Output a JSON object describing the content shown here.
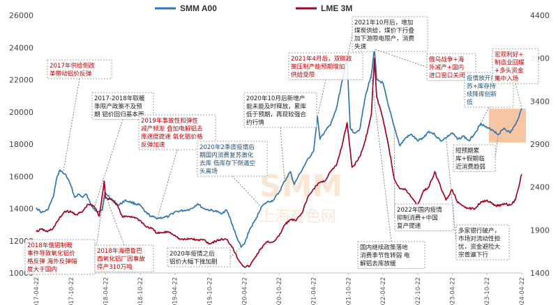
{
  "chart_data": {
    "type": "line",
    "title": "",
    "xlabel": "",
    "ylabel": "",
    "legend_position": "top-center",
    "grid": false,
    "x_ticks": [
      "2017-04-22",
      "2017-10-22",
      "2018-04-22",
      "2018-10-22",
      "2019-04-22",
      "2019-10-22",
      "2020-04-22",
      "2020-10-22",
      "2021-04-22",
      "2021-10-22",
      "2022-04-22",
      "2022-10-22",
      "2023-04-22",
      "2023-10-22",
      "2024-04-22"
    ],
    "y_left": {
      "label": "SMM A00",
      "lim": [
        10000,
        26000
      ],
      "ticks": [
        "10000",
        "12000",
        "14000",
        "16000",
        "18000",
        "20000",
        "22000",
        "24000",
        "26000"
      ]
    },
    "y_right": {
      "label": "LME 3M",
      "lim": [
        1400,
        4400
      ],
      "ticks": [
        "1400",
        "1900",
        "2400",
        "2900",
        "3400",
        "3900",
        "4400"
      ]
    },
    "series": [
      {
        "name": "SMM A00",
        "axis": "left",
        "color": "#2e75b6",
        "points": [
          [
            "2017-04-22",
            14050
          ],
          [
            "2017-05-20",
            13750
          ],
          [
            "2017-06-20",
            13900
          ],
          [
            "2017-07-20",
            14700
          ],
          [
            "2017-08-10",
            16000
          ],
          [
            "2017-08-25",
            16400
          ],
          [
            "2017-09-10",
            16200
          ],
          [
            "2017-09-25",
            16100
          ],
          [
            "2017-10-22",
            15400
          ],
          [
            "2017-11-10",
            14700
          ],
          [
            "2017-12-01",
            14900
          ],
          [
            "2017-12-20",
            14700
          ],
          [
            "2018-01-10",
            14900
          ],
          [
            "2018-02-01",
            14300
          ],
          [
            "2018-02-20",
            14000
          ],
          [
            "2018-03-10",
            13800
          ],
          [
            "2018-04-05",
            13900
          ],
          [
            "2018-04-20",
            15000
          ],
          [
            "2018-05-05",
            14800
          ],
          [
            "2018-06-01",
            14500
          ],
          [
            "2018-07-01",
            14200
          ],
          [
            "2018-08-01",
            14500
          ],
          [
            "2018-09-01",
            14400
          ],
          [
            "2018-10-22",
            14200
          ],
          [
            "2018-11-15",
            13800
          ],
          [
            "2018-12-20",
            13500
          ],
          [
            "2019-01-20",
            13400
          ],
          [
            "2019-02-20",
            13450
          ],
          [
            "2019-03-20",
            13500
          ],
          [
            "2019-04-22",
            13800
          ],
          [
            "2019-05-20",
            13850
          ],
          [
            "2019-06-20",
            13900
          ],
          [
            "2019-07-20",
            14000
          ],
          [
            "2019-08-20",
            14300
          ],
          [
            "2019-09-20",
            14000
          ],
          [
            "2019-10-22",
            13900
          ],
          [
            "2019-11-20",
            13850
          ],
          [
            "2019-12-20",
            13700
          ],
          [
            "2020-01-20",
            13900
          ],
          [
            "2020-02-10",
            13300
          ],
          [
            "2020-03-10",
            12300
          ],
          [
            "2020-04-05",
            11600
          ],
          [
            "2020-04-22",
            11800
          ],
          [
            "2020-05-20",
            12700
          ],
          [
            "2020-06-20",
            13300
          ],
          [
            "2020-07-20",
            14100
          ],
          [
            "2020-08-20",
            14400
          ],
          [
            "2020-09-20",
            14500
          ],
          [
            "2020-10-22",
            15000
          ],
          [
            "2020-11-20",
            15700
          ],
          [
            "2020-12-20",
            16300
          ],
          [
            "2021-01-10",
            15500
          ],
          [
            "2021-02-10",
            16200
          ],
          [
            "2021-03-10",
            16800
          ],
          [
            "2021-04-22",
            17600
          ],
          [
            "2021-05-12",
            19700
          ],
          [
            "2021-05-25",
            18300
          ],
          [
            "2021-06-20",
            18800
          ],
          [
            "2021-07-20",
            19200
          ],
          [
            "2021-08-20",
            20200
          ],
          [
            "2021-09-20",
            22000
          ],
          [
            "2021-10-15",
            23200
          ],
          [
            "2021-11-01",
            19000
          ],
          [
            "2021-11-20",
            18700
          ],
          [
            "2021-12-20",
            18900
          ],
          [
            "2022-01-20",
            21000
          ],
          [
            "2022-02-20",
            22300
          ],
          [
            "2022-03-08",
            23900
          ],
          [
            "2022-03-20",
            22000
          ],
          [
            "2022-04-22",
            21800
          ],
          [
            "2022-05-20",
            20400
          ],
          [
            "2022-06-20",
            19100
          ],
          [
            "2022-07-20",
            17900
          ],
          [
            "2022-08-20",
            18400
          ],
          [
            "2022-09-20",
            18600
          ],
          [
            "2022-10-22",
            18200
          ],
          [
            "2022-11-20",
            18400
          ],
          [
            "2022-12-20",
            18800
          ],
          [
            "2023-01-20",
            18600
          ],
          [
            "2023-02-20",
            18200
          ],
          [
            "2023-03-20",
            18400
          ],
          [
            "2023-04-22",
            18700
          ],
          [
            "2023-05-20",
            18300
          ],
          [
            "2023-06-20",
            18500
          ],
          [
            "2023-07-20",
            18200
          ],
          [
            "2023-08-20",
            18700
          ],
          [
            "2023-09-20",
            19300
          ],
          [
            "2023-10-22",
            19000
          ],
          [
            "2023-11-20",
            18900
          ],
          [
            "2023-12-20",
            18600
          ],
          [
            "2024-01-20",
            19000
          ],
          [
            "2024-02-20",
            18700
          ],
          [
            "2024-03-20",
            19200
          ],
          [
            "2024-04-22",
            20200
          ]
        ]
      },
      {
        "name": "LME 3M",
        "axis": "right",
        "color": "#a50021",
        "points": [
          [
            "2017-04-22",
            1880
          ],
          [
            "2017-05-20",
            1910
          ],
          [
            "2017-06-20",
            1880
          ],
          [
            "2017-07-20",
            1920
          ],
          [
            "2017-08-20",
            2030
          ],
          [
            "2017-09-20",
            2120
          ],
          [
            "2017-10-22",
            2110
          ],
          [
            "2017-11-20",
            2080
          ],
          [
            "2017-12-20",
            2110
          ],
          [
            "2018-01-20",
            2200
          ],
          [
            "2018-02-20",
            2180
          ],
          [
            "2018-03-20",
            2060
          ],
          [
            "2018-04-15",
            2470
          ],
          [
            "2018-04-22",
            2270
          ],
          [
            "2018-05-20",
            2260
          ],
          [
            "2018-06-20",
            2200
          ],
          [
            "2018-07-20",
            2050
          ],
          [
            "2018-08-20",
            2060
          ],
          [
            "2018-09-20",
            2050
          ],
          [
            "2018-10-22",
            2010
          ],
          [
            "2018-11-20",
            1940
          ],
          [
            "2018-12-20",
            1920
          ],
          [
            "2019-01-20",
            1860
          ],
          [
            "2019-02-20",
            1870
          ],
          [
            "2019-03-20",
            1880
          ],
          [
            "2019-04-22",
            1840
          ],
          [
            "2019-05-20",
            1790
          ],
          [
            "2019-06-20",
            1790
          ],
          [
            "2019-07-20",
            1800
          ],
          [
            "2019-08-20",
            1780
          ],
          [
            "2019-09-20",
            1790
          ],
          [
            "2019-10-22",
            1740
          ],
          [
            "2019-11-20",
            1770
          ],
          [
            "2019-12-20",
            1790
          ],
          [
            "2020-01-20",
            1790
          ],
          [
            "2020-02-20",
            1700
          ],
          [
            "2020-03-20",
            1560
          ],
          [
            "2020-04-22",
            1470
          ],
          [
            "2020-05-20",
            1480
          ],
          [
            "2020-06-20",
            1590
          ],
          [
            "2020-07-20",
            1690
          ],
          [
            "2020-08-20",
            1760
          ],
          [
            "2020-09-20",
            1760
          ],
          [
            "2020-10-22",
            1830
          ],
          [
            "2020-11-20",
            1960
          ],
          [
            "2020-12-20",
            2020
          ],
          [
            "2021-01-20",
            2010
          ],
          [
            "2021-02-20",
            2100
          ],
          [
            "2021-03-20",
            2270
          ],
          [
            "2021-04-22",
            2380
          ],
          [
            "2021-05-20",
            2450
          ],
          [
            "2021-06-20",
            2470
          ],
          [
            "2021-07-20",
            2580
          ],
          [
            "2021-08-20",
            2650
          ],
          [
            "2021-09-20",
            2900
          ],
          [
            "2021-10-15",
            3150
          ],
          [
            "2021-11-10",
            2630
          ],
          [
            "2021-11-20",
            2650
          ],
          [
            "2021-12-20",
            2750
          ],
          [
            "2022-01-20",
            2950
          ],
          [
            "2022-02-20",
            3250
          ],
          [
            "2022-03-08",
            3900
          ],
          [
            "2022-03-20",
            3450
          ],
          [
            "2022-04-22",
            3200
          ],
          [
            "2022-05-20",
            2900
          ],
          [
            "2022-06-20",
            2500
          ],
          [
            "2022-07-20",
            2380
          ],
          [
            "2022-08-20",
            2370
          ],
          [
            "2022-09-20",
            2280
          ],
          [
            "2022-10-22",
            2190
          ],
          [
            "2022-11-20",
            2350
          ],
          [
            "2022-12-20",
            2400
          ],
          [
            "2023-01-20",
            2580
          ],
          [
            "2023-02-20",
            2400
          ],
          [
            "2023-03-20",
            2250
          ],
          [
            "2023-04-22",
            2370
          ],
          [
            "2023-05-20",
            2220
          ],
          [
            "2023-06-20",
            2180
          ],
          [
            "2023-07-20",
            2150
          ],
          [
            "2023-08-20",
            2150
          ],
          [
            "2023-09-20",
            2230
          ],
          [
            "2023-10-22",
            2250
          ],
          [
            "2023-11-20",
            2200
          ],
          [
            "2023-12-20",
            2180
          ],
          [
            "2024-01-20",
            2210
          ],
          [
            "2024-02-20",
            2190
          ],
          [
            "2024-03-20",
            2250
          ],
          [
            "2024-04-22",
            2550
          ]
        ]
      }
    ],
    "highlight_region": {
      "x_start": "2023-11-01",
      "x_end": "2024-04-22",
      "y_left": [
        18100,
        20200
      ],
      "color": "#f4b183"
    },
    "annotations": [
      {
        "id": "ann-2017-supply",
        "lines": [
          "2017年供给侧改",
          "革带动铝价反弹"
        ],
        "color": "red",
        "anchor": [
          "2017-08-25",
          16400
        ],
        "connector": [
          "2017-09-10",
          16200
        ]
      },
      {
        "id": "ann-2017-2018-limit",
        "lines": [
          "2017-2018年取暖",
          "季限产政策不及预",
          "期 铝价回归基本面"
        ],
        "color": "dark",
        "connector": [
          "2018-02-20",
          14000
        ]
      },
      {
        "id": "ann-2019-accident",
        "lines": [
          "2019年事故性和弹性",
          "减产频发 叠加电解铝去",
          "库速度提速 氧化铝价格",
          "反弹加速"
        ],
        "color": "red",
        "connector": [
          "2019-01-20",
          13400
        ]
      },
      {
        "id": "ann-2020-q2",
        "lines": [
          "2020年2季度疫情后",
          "期国内消费复苏激化",
          "去库 低库存下倒逼空",
          "头离场"
        ],
        "color": "blue",
        "connector": [
          "2020-07-20",
          14100
        ]
      },
      {
        "id": "ann-2020-oct",
        "lines": [
          "2020年10月后新增产",
          "能未能及时释放，累库",
          "低于预期，再现较强合",
          "约行情"
        ],
        "color": "dark",
        "connector": [
          "2020-11-20",
          15700
        ]
      },
      {
        "id": "ann-2021-apr",
        "lines": [
          "2021年4月后，双碳政",
          "策压制产能预期增加",
          "供给受限"
        ],
        "color": "red",
        "connector": [
          "2021-05-12",
          19700
        ]
      },
      {
        "id": "ann-2021-oct",
        "lines": [
          "2021年10月后，增加",
          "煤炭供给，煤价下行叠",
          "加下游限电限产，消费",
          "失速"
        ],
        "color": "dark",
        "connector": [
          "2021-10-15",
          23200
        ]
      },
      {
        "id": "ann-russia",
        "lines": [
          "俄乌战争+海",
          "外减产+国内",
          "进口窗口关闭"
        ],
        "color": "red",
        "connector": [
          "2022-03-08",
          23900
        ]
      },
      {
        "id": "ann-2023-recover",
        "lines": [
          "疫情放开后复",
          "苏+库存持",
          "续降库创新",
          "低"
        ],
        "color": "blue",
        "connector": [
          "2023-09-20",
          19300
        ]
      },
      {
        "id": "ann-2024-macro",
        "lines": [
          "宏观利好+",
          "制造业回暖",
          "+多头资金",
          "集中入场"
        ],
        "color": "red",
        "connector": [
          "2024-04-22",
          20200
        ]
      },
      {
        "id": "ann-2018-sanction",
        "lines": [
          "2018年俄铝制裁",
          "事件导致氧化铝价",
          "格反弹 海外反弹幅",
          "度大于国内"
        ],
        "color": "red",
        "connector": [
          "2018-04-15",
          15000
        ]
      },
      {
        "id": "ann-2018-brazil",
        "lines": [
          "2018年海德鲁巴",
          "西氧化铝厂因事故",
          "停产310万吨"
        ],
        "color": "red",
        "connector": [
          "2018-04-22",
          14800
        ]
      },
      {
        "id": "ann-2020-covid",
        "lines": [
          "2020年疫情之后",
          "铝价大幅下挫加剧"
        ],
        "color": "dark",
        "connector": [
          "2020-04-05",
          11600
        ]
      },
      {
        "id": "ann-2022-covid",
        "lines": [
          "2022年国内疫情",
          "抑制消费+中国",
          "复产提速"
        ],
        "color": "dark",
        "connector": [
          "2022-06-20",
          19100
        ]
      },
      {
        "id": "ann-2022-season",
        "lines": [
          "国内继续政策落地",
          "消费季节性转弱   电",
          "解铝去库放缓"
        ],
        "color": "dark",
        "connector": [
          "2022-02-20",
          22300
        ]
      },
      {
        "id": "ann-2023-festival",
        "lines": [
          "短预期累",
          "库+假期临",
          "近消费趋弱"
        ],
        "color": "dark",
        "connector": [
          "2023-12-20",
          18600
        ]
      },
      {
        "id": "ann-2023-bank",
        "lines": [
          "多家银行破产，",
          "市场对流动性担",
          "忧，资金避险大",
          "宗普遍下行"
        ],
        "color": "dark",
        "connector": [
          "2023-03-20",
          18400
        ]
      }
    ]
  },
  "legend": [
    {
      "label": "SMM A00",
      "color": "#2e75b6"
    },
    {
      "label": "LME 3M",
      "color": "#a50021"
    }
  ],
  "watermark": {
    "brand": "SMM",
    "sub": "上海有色网"
  }
}
